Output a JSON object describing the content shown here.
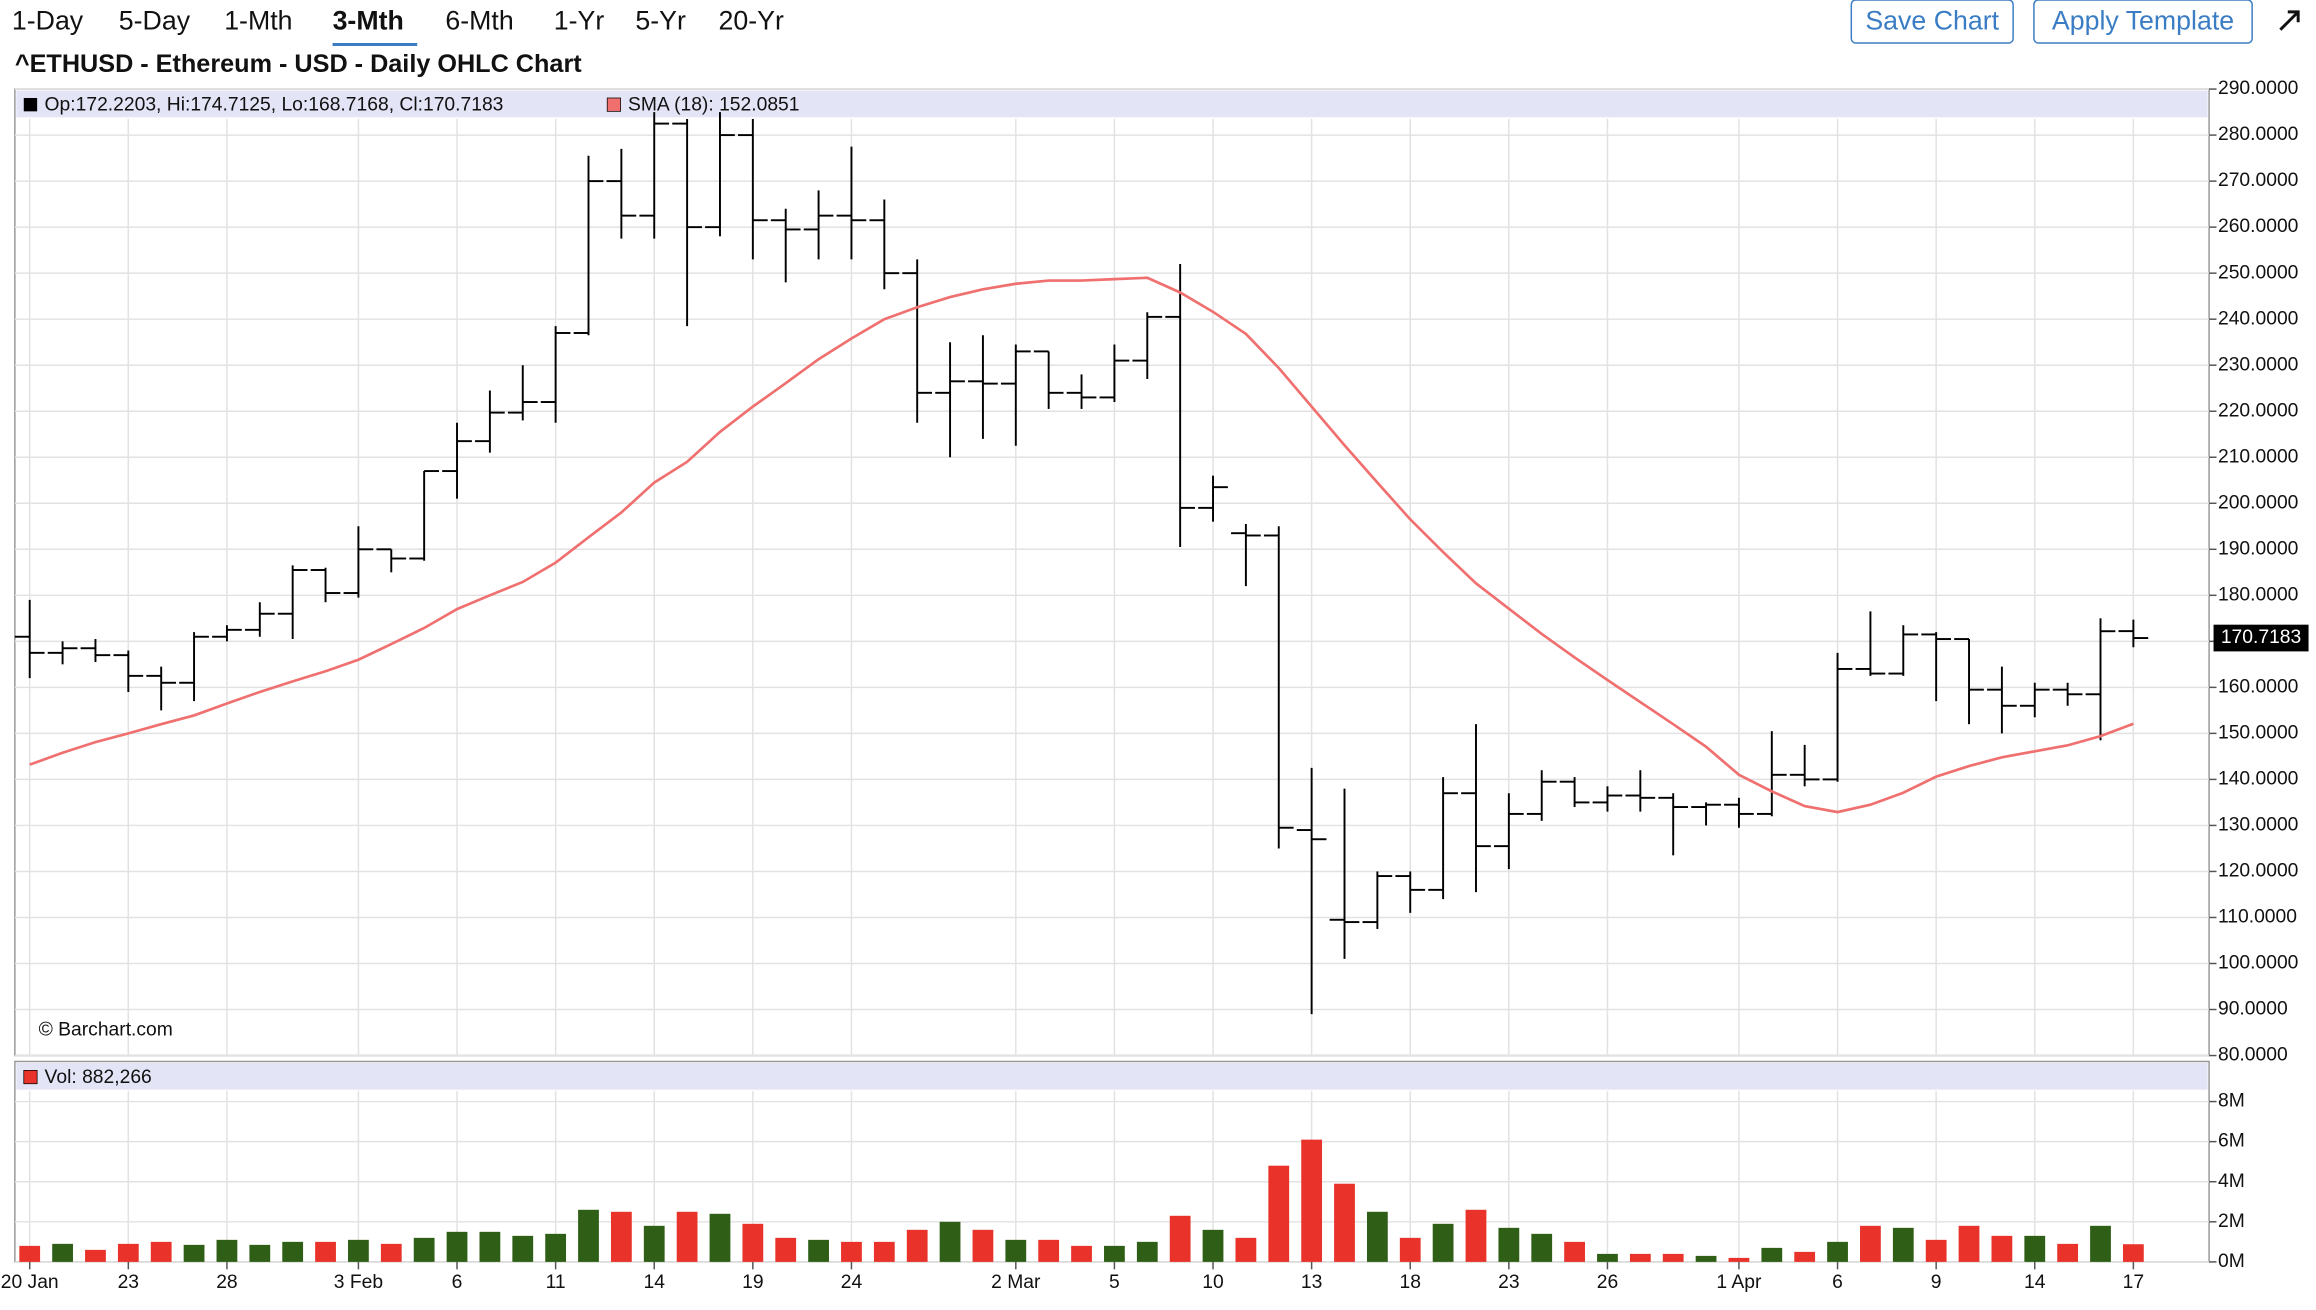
{
  "toolbar": {
    "tabs": [
      "1-Day",
      "5-Day",
      "1-Mth",
      "3-Mth",
      "6-Mth",
      "1-Yr",
      "5-Yr",
      "20-Yr"
    ],
    "active_tab": 3,
    "buttons": [
      "Save Chart",
      "Apply Template"
    ]
  },
  "chart_data": {
    "type": "ohlc",
    "title": "^ETHUSD - Ethereum - USD - Daily OHLC Chart",
    "legend": "Op:172.2203, Hi:174.7125, Lo:168.7168, Cl:170.7183",
    "last_price_label": "170.7183",
    "watermark": "© Barchart.com",
    "color": "#000000",
    "categories": [
      "20 Jan",
      null,
      null,
      "23",
      null,
      null,
      "28",
      null,
      null,
      null,
      "3 Feb",
      null,
      null,
      "6",
      null,
      null,
      "11",
      null,
      null,
      "14",
      null,
      null,
      "19",
      null,
      null,
      "24",
      null,
      null,
      null,
      null,
      "2 Mar",
      null,
      null,
      "5",
      null,
      null,
      "10",
      null,
      null,
      "13",
      null,
      null,
      "18",
      null,
      null,
      "23",
      null,
      null,
      "26",
      null,
      null,
      null,
      "1 Apr",
      null,
      null,
      "6",
      null,
      null,
      "9",
      null,
      null,
      "14",
      null,
      null,
      "17"
    ],
    "open": [
      171,
      167.5,
      168.5,
      167,
      162.5,
      161,
      171,
      172.5,
      176,
      185.5,
      180.5,
      190,
      188,
      207,
      213.5,
      219.7,
      222,
      237,
      270,
      262.5,
      282.5,
      260,
      280,
      261.5,
      259.5,
      262.5,
      261.5,
      250,
      224,
      226.5,
      226,
      233,
      224,
      223,
      231,
      240.5,
      199,
      193.5,
      193,
      129,
      109.5,
      109,
      119,
      116,
      137,
      125.5,
      132.5,
      139.5,
      135,
      136.5,
      136,
      134,
      134.5,
      132.5,
      141,
      140,
      164,
      163,
      171.5,
      170.5,
      159.5,
      156,
      159.5,
      158.5,
      172.2203
    ],
    "high": [
      179,
      170,
      170.5,
      168,
      164.5,
      172,
      173.5,
      178.5,
      186.5,
      186,
      195,
      190,
      207,
      217.5,
      224.5,
      230,
      238.5,
      275.5,
      277,
      285,
      283.5,
      285,
      283.5,
      264,
      268,
      277.5,
      266,
      253,
      235,
      236.5,
      234.5,
      233,
      228,
      234.5,
      241.5,
      252,
      206,
      195.5,
      195,
      142.5,
      138,
      120,
      120,
      140.5,
      152,
      137,
      142,
      140.5,
      138.5,
      142,
      137,
      135,
      136,
      150.5,
      147.5,
      167.5,
      176.5,
      173.5,
      172,
      170.5,
      164.5,
      161,
      161,
      175,
      174.7125
    ],
    "low": [
      162,
      165,
      165.5,
      159,
      155,
      157,
      170,
      171,
      170.5,
      178.5,
      179.5,
      185,
      187.5,
      201,
      211,
      218,
      217.5,
      236.5,
      257.5,
      257.5,
      238.5,
      258,
      253,
      248,
      253,
      253,
      246.5,
      217.5,
      210,
      214,
      212.5,
      220.5,
      220.5,
      222,
      227,
      190.5,
      196,
      182,
      125,
      89,
      101,
      107.5,
      111,
      114,
      115.5,
      120.5,
      131,
      134,
      133,
      133,
      123.5,
      130,
      129.5,
      132,
      138.5,
      139.5,
      162.5,
      162.5,
      157,
      152,
      150,
      153.5,
      156,
      148.5,
      168.7168
    ],
    "close": [
      167.5,
      168.5,
      167,
      162.5,
      161,
      171,
      172.5,
      176,
      185.5,
      180.5,
      190,
      188,
      207,
      213.5,
      219.7,
      222,
      237,
      270,
      262.5,
      282.5,
      260,
      280,
      261.5,
      259.5,
      262.5,
      261.5,
      250,
      224,
      226.5,
      226,
      233,
      224,
      223,
      231,
      240.5,
      199,
      203.5,
      193,
      129.5,
      127,
      109,
      119,
      116,
      137,
      125.5,
      132.5,
      139.5,
      135,
      136.5,
      136,
      134,
      134.5,
      132.5,
      141,
      140,
      164,
      163,
      171.5,
      170.5,
      159.5,
      156,
      159.5,
      158.5,
      172.2,
      170.7183
    ],
    "sma": {
      "name": "SMA (18): 152.0851",
      "color": "#f07070",
      "values": [
        143.2,
        145.8,
        148.1,
        150,
        152,
        153.9,
        156.5,
        159,
        161.3,
        163.5,
        166,
        169.4,
        172.9,
        177,
        180,
        182.9,
        187.1,
        192.6,
        198,
        204.5,
        209,
        215.5,
        221,
        226.1,
        231.3,
        235.8,
        240,
        242.6,
        244.8,
        246.5,
        247.7,
        248.4,
        248.4,
        248.7,
        249,
        245.8,
        241.6,
        236.8,
        229.4,
        221,
        212.6,
        204.5,
        196.5,
        189.4,
        182.6,
        177.1,
        171.6,
        166.5,
        161.6,
        156.8,
        152,
        147.1,
        141,
        137.4,
        134.2,
        132.9,
        134.5,
        137.1,
        140.6,
        142.9,
        144.8,
        146.1,
        147.4,
        149.4,
        152.0851
      ]
    },
    "ylim": [
      80,
      290
    ],
    "yticks": [
      {
        "value": 80,
        "label": "80.0000"
      },
      {
        "value": 90,
        "label": "90.0000"
      },
      {
        "value": 100,
        "label": "100.0000"
      },
      {
        "value": 110,
        "label": "110.0000"
      },
      {
        "value": 120,
        "label": "120.0000"
      },
      {
        "value": 130,
        "label": "130.0000"
      },
      {
        "value": 140,
        "label": "140.0000"
      },
      {
        "value": 150,
        "label": "150.0000"
      },
      {
        "value": 160,
        "label": "160.0000"
      },
      {
        "value": 170,
        "label": "170.0000"
      },
      {
        "value": 180,
        "label": "180.0000"
      },
      {
        "value": 190,
        "label": "190.0000"
      },
      {
        "value": 200,
        "label": "200.0000"
      },
      {
        "value": 210,
        "label": "210.0000"
      },
      {
        "value": 220,
        "label": "220.0000"
      },
      {
        "value": 230,
        "label": "230.0000"
      },
      {
        "value": 240,
        "label": "240.0000"
      },
      {
        "value": 250,
        "label": "250.0000"
      },
      {
        "value": 260,
        "label": "260.0000"
      },
      {
        "value": 270,
        "label": "270.0000"
      },
      {
        "value": 280,
        "label": "280.0000"
      },
      {
        "value": 290,
        "label": "290.0000"
      }
    ],
    "grid": true,
    "volume": {
      "name": "Vol: 882,266",
      "up_color": "#2f5f16",
      "down_color": "#e8322a",
      "values": [
        0.8,
        0.9,
        0.6,
        0.9,
        1.0,
        0.85,
        1.1,
        0.85,
        1.0,
        1.0,
        1.1,
        0.9,
        1.2,
        1.5,
        1.5,
        1.3,
        1.4,
        2.6,
        2.5,
        1.8,
        2.5,
        2.4,
        1.9,
        1.2,
        1.1,
        1.0,
        1.0,
        1.6,
        2.0,
        1.6,
        1.1,
        1.1,
        0.8,
        0.8,
        1.0,
        2.3,
        1.6,
        1.2,
        4.8,
        6.1,
        3.9,
        2.5,
        1.2,
        1.9,
        2.6,
        1.7,
        1.4,
        1.0,
        0.4,
        0.4,
        0.4,
        0.3,
        0.2,
        0.7,
        0.5,
        1.0,
        1.8,
        1.7,
        1.1,
        1.8,
        1.3,
        1.3,
        0.9,
        1.8,
        0.882266
      ],
      "ylim": [
        0,
        8
      ],
      "yticks": [
        {
          "value": 0,
          "label": "0M"
        },
        {
          "value": 2,
          "label": "2M"
        },
        {
          "value": 4,
          "label": "4M"
        },
        {
          "value": 6,
          "label": "6M"
        },
        {
          "value": 8,
          "label": "8M"
        }
      ]
    }
  }
}
